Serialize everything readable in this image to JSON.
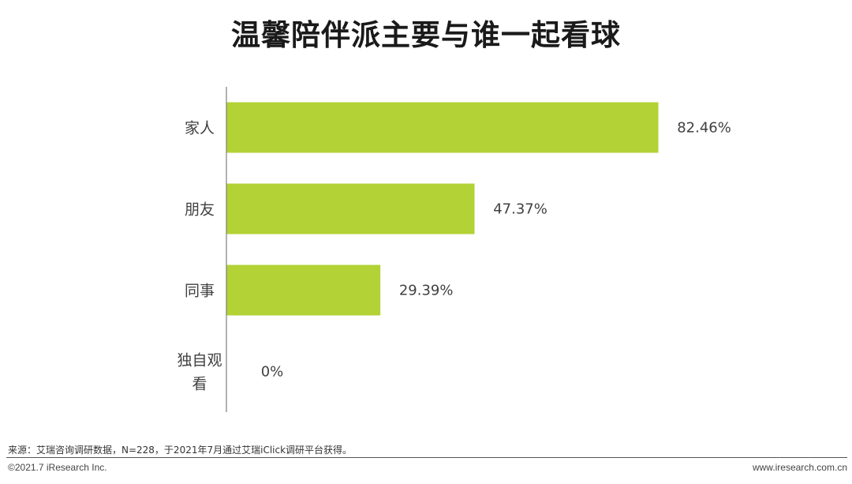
{
  "title": "温馨陪伴派主要与谁一起看球",
  "chart_data": {
    "type": "bar",
    "orientation": "horizontal",
    "categories": [
      "家人",
      "朋友",
      "同事",
      "独自观看"
    ],
    "category_lines": [
      [
        "家人"
      ],
      [
        "朋友"
      ],
      [
        "同事"
      ],
      [
        "独自观",
        "看"
      ]
    ],
    "values": [
      82.46,
      47.37,
      29.39,
      0
    ],
    "value_labels": [
      "82.46%",
      "47.37%",
      "29.39%",
      "0%"
    ],
    "xlim": [
      0,
      100
    ],
    "bar_color": "#b2d235",
    "axis_color": "#7f7f7f",
    "grid": false,
    "legend": "none"
  },
  "footer": {
    "source": "来源：艾瑞咨询调研数据，N=228，于2021年7月通过艾瑞iClick调研平台获得。",
    "copyright": "©2021.7 iResearch Inc.",
    "website": "www.iresearch.com.cn"
  }
}
